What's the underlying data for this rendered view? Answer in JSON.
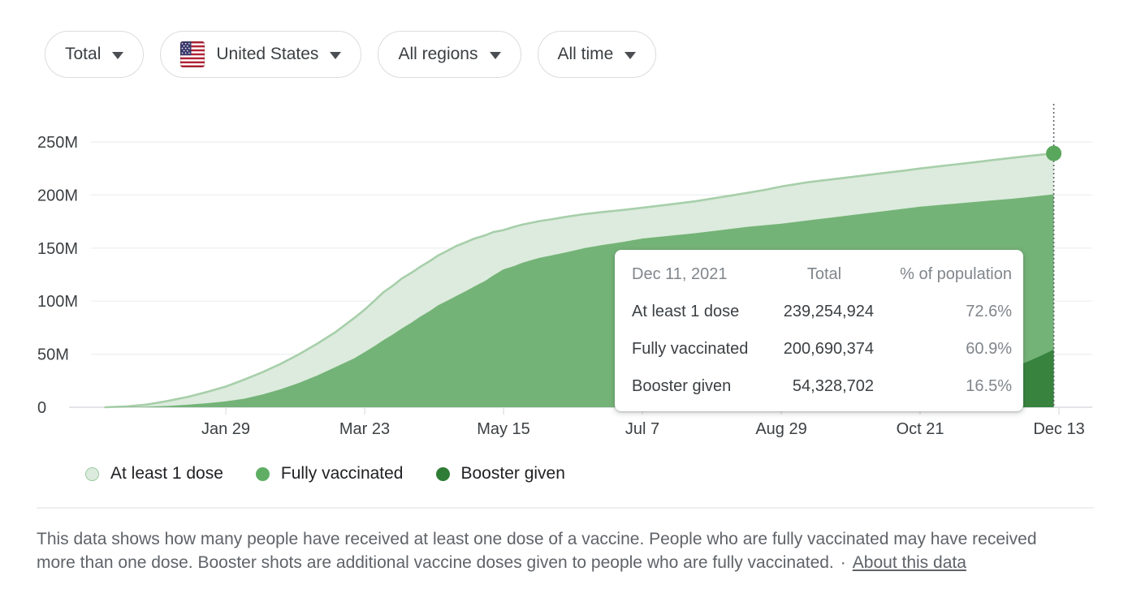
{
  "filters": [
    {
      "label": "Total"
    },
    {
      "label": "United States",
      "flag": "us-flag"
    },
    {
      "label": "All regions"
    },
    {
      "label": "All time"
    }
  ],
  "chart_data": {
    "type": "area",
    "x_unit": "days since Dec 14, 2020",
    "y_unit": "people (millions)",
    "ylim": [
      0,
      250
    ],
    "grid": true,
    "legend_position": "bottom",
    "x_ticks": [
      {
        "day": 46,
        "label": "Jan 29"
      },
      {
        "day": 99,
        "label": "Mar 23"
      },
      {
        "day": 152,
        "label": "May 15"
      },
      {
        "day": 205,
        "label": "Jul 7"
      },
      {
        "day": 258,
        "label": "Aug 29"
      },
      {
        "day": 311,
        "label": "Oct 21"
      },
      {
        "day": 364,
        "label": "Dec 13"
      }
    ],
    "y_ticks": [
      {
        "value": 0,
        "label": "0"
      },
      {
        "value": 50,
        "label": "50M"
      },
      {
        "value": 100,
        "label": "100M"
      },
      {
        "value": 150,
        "label": "150M"
      },
      {
        "value": 200,
        "label": "200M"
      },
      {
        "value": 250,
        "label": "250M"
      }
    ],
    "series": [
      {
        "name": "At least 1 dose",
        "color": "#dcebdd",
        "stroke": "#a7cfaa",
        "points": [
          [
            0,
            0
          ],
          [
            8,
            0.8
          ],
          [
            16,
            2.5
          ],
          [
            24,
            6
          ],
          [
            32,
            10
          ],
          [
            39,
            14.5
          ],
          [
            46,
            19.5
          ],
          [
            53,
            26
          ],
          [
            60,
            33
          ],
          [
            67,
            41
          ],
          [
            74,
            50
          ],
          [
            81,
            60
          ],
          [
            88,
            71
          ],
          [
            95,
            84
          ],
          [
            99,
            92
          ],
          [
            103,
            101
          ],
          [
            106,
            108
          ],
          [
            110,
            115
          ],
          [
            113,
            121
          ],
          [
            117,
            127
          ],
          [
            120,
            132
          ],
          [
            124,
            138
          ],
          [
            127,
            143
          ],
          [
            131,
            148
          ],
          [
            134,
            152
          ],
          [
            138,
            156
          ],
          [
            141,
            159
          ],
          [
            145,
            162
          ],
          [
            148,
            165
          ],
          [
            152,
            167
          ],
          [
            156,
            170
          ],
          [
            159,
            172
          ],
          [
            163,
            174
          ],
          [
            166,
            175.5
          ],
          [
            170,
            177
          ],
          [
            176,
            179.5
          ],
          [
            183,
            182
          ],
          [
            190,
            184
          ],
          [
            198,
            186
          ],
          [
            205,
            188
          ],
          [
            215,
            191
          ],
          [
            225,
            194
          ],
          [
            235,
            198
          ],
          [
            245,
            202
          ],
          [
            252,
            205
          ],
          [
            258,
            208
          ],
          [
            268,
            212
          ],
          [
            278,
            215
          ],
          [
            288,
            218
          ],
          [
            298,
            221
          ],
          [
            305,
            223
          ],
          [
            311,
            225
          ],
          [
            318,
            227
          ],
          [
            325,
            229
          ],
          [
            332,
            231
          ],
          [
            339,
            233
          ],
          [
            346,
            235
          ],
          [
            352,
            236.7
          ],
          [
            357,
            238
          ],
          [
            362,
            239.25
          ]
        ]
      },
      {
        "name": "Fully vaccinated",
        "color": "#74b377",
        "points": [
          [
            0,
            0
          ],
          [
            16,
            0.5
          ],
          [
            24,
            1.2
          ],
          [
            32,
            2.5
          ],
          [
            39,
            3.8
          ],
          [
            46,
            5.5
          ],
          [
            53,
            8
          ],
          [
            60,
            12
          ],
          [
            67,
            17
          ],
          [
            74,
            23
          ],
          [
            81,
            30
          ],
          [
            88,
            38
          ],
          [
            95,
            46
          ],
          [
            99,
            52
          ],
          [
            103,
            58
          ],
          [
            106,
            63
          ],
          [
            110,
            69
          ],
          [
            113,
            74
          ],
          [
            117,
            80
          ],
          [
            120,
            85
          ],
          [
            124,
            91
          ],
          [
            127,
            96
          ],
          [
            131,
            101
          ],
          [
            134,
            105
          ],
          [
            138,
            110
          ],
          [
            141,
            114
          ],
          [
            145,
            119
          ],
          [
            148,
            124
          ],
          [
            152,
            130
          ],
          [
            156,
            133
          ],
          [
            159,
            136
          ],
          [
            163,
            139
          ],
          [
            166,
            141
          ],
          [
            170,
            143
          ],
          [
            176,
            146
          ],
          [
            183,
            150
          ],
          [
            190,
            153
          ],
          [
            198,
            156
          ],
          [
            205,
            159
          ],
          [
            215,
            161.5
          ],
          [
            225,
            164
          ],
          [
            235,
            167
          ],
          [
            245,
            170
          ],
          [
            258,
            173
          ],
          [
            268,
            176
          ],
          [
            278,
            179
          ],
          [
            288,
            182
          ],
          [
            298,
            185
          ],
          [
            311,
            189
          ],
          [
            318,
            190.5
          ],
          [
            325,
            192
          ],
          [
            332,
            193.5
          ],
          [
            339,
            195
          ],
          [
            346,
            196.5
          ],
          [
            352,
            198
          ],
          [
            357,
            199.3
          ],
          [
            362,
            200.69
          ]
        ]
      },
      {
        "name": "Booster given",
        "color": "#38833e",
        "points": [
          [
            240,
            0
          ],
          [
            250,
            0.6
          ],
          [
            258,
            1.3
          ],
          [
            266,
            2.2
          ],
          [
            274,
            3.3
          ],
          [
            282,
            4.8
          ],
          [
            291,
            7
          ],
          [
            300,
            10
          ],
          [
            311,
            13.5
          ],
          [
            318,
            17
          ],
          [
            325,
            21
          ],
          [
            332,
            26
          ],
          [
            339,
            31
          ],
          [
            346,
            37
          ],
          [
            352,
            43
          ],
          [
            357,
            48.5
          ],
          [
            362,
            54.33
          ]
        ]
      }
    ],
    "hover": {
      "day": 362,
      "marker_value": 239.25,
      "marker_color": "#58a75d"
    },
    "colors": {
      "grid": "#eceef0",
      "baseline": "#dadce0",
      "tick": "#dadce0",
      "axis_text": "#3c4043",
      "dashed": "#5f6368"
    }
  },
  "tooltip": {
    "date": "Dec 11, 2021",
    "col_total": "Total",
    "col_pct": "% of population",
    "rows": [
      {
        "label": "At least 1 dose",
        "total": "239,254,924",
        "pct": "72.6%"
      },
      {
        "label": "Fully vaccinated",
        "total": "200,690,374",
        "pct": "60.9%"
      },
      {
        "label": "Booster given",
        "total": "54,328,702",
        "pct": "16.5%"
      }
    ]
  },
  "legend": [
    {
      "label": "At least 1 dose",
      "color": "#dcebdd",
      "border": "#9ccaa0"
    },
    {
      "label": "Fully vaccinated",
      "color": "#5fae64"
    },
    {
      "label": "Booster given",
      "color": "#2f7d35"
    }
  ],
  "footer": {
    "text": "This data shows how many people have received at least one dose of a vaccine. People who are fully vaccinated may have received more than one dose. Booster shots are additional vaccine doses given to people who are fully vaccinated.",
    "separator": "·",
    "link": "About this data"
  }
}
